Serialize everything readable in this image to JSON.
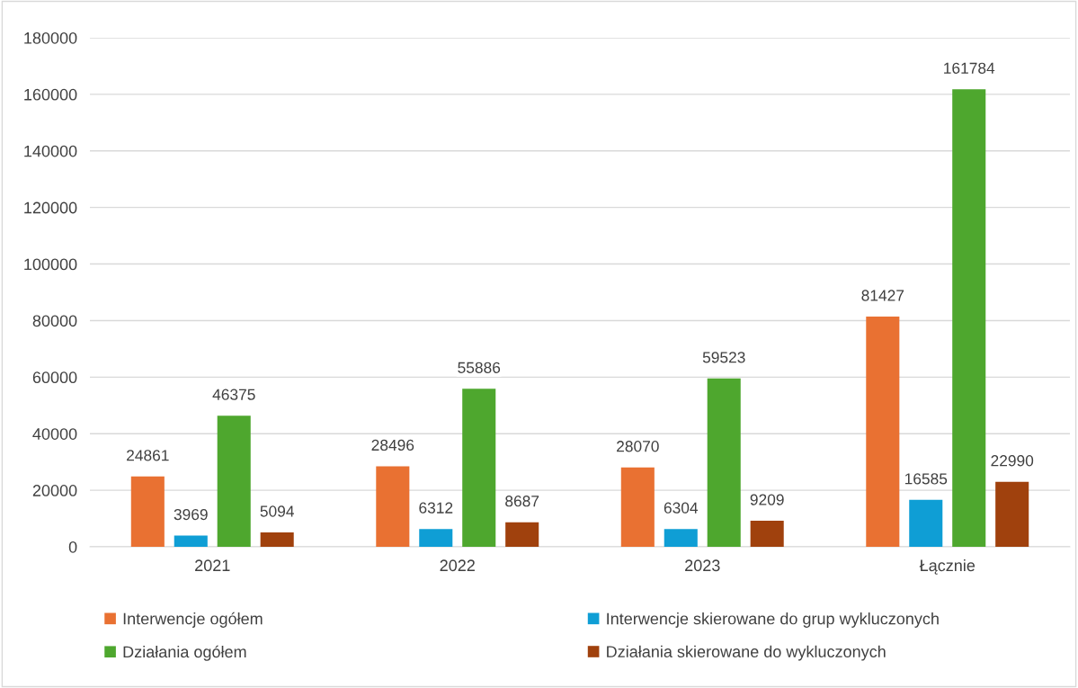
{
  "chart_data": {
    "type": "bar",
    "categories": [
      "2021",
      "2022",
      "2023",
      "Łącznie"
    ],
    "series": [
      {
        "name": "Interwencje ogółem",
        "color": "#e97132",
        "values": [
          24861,
          28496,
          28070,
          81427
        ]
      },
      {
        "name": "Interwencje skierowane do grup wykluczonych",
        "color": "#0f9ed5",
        "values": [
          3969,
          6312,
          6304,
          16585
        ]
      },
      {
        "name": "Działania ogółem",
        "color": "#4ea72e",
        "values": [
          46375,
          55886,
          59523,
          161784
        ]
      },
      {
        "name": "Działania skierowane do wykluczonych",
        "color": "#a0410d",
        "values": [
          5094,
          8687,
          9209,
          22990
        ]
      }
    ],
    "ylim": [
      0,
      180000
    ],
    "yticks": [
      0,
      20000,
      40000,
      60000,
      80000,
      100000,
      120000,
      140000,
      160000,
      180000
    ],
    "grid": "y",
    "legend": "bottom",
    "data_labels": true
  }
}
